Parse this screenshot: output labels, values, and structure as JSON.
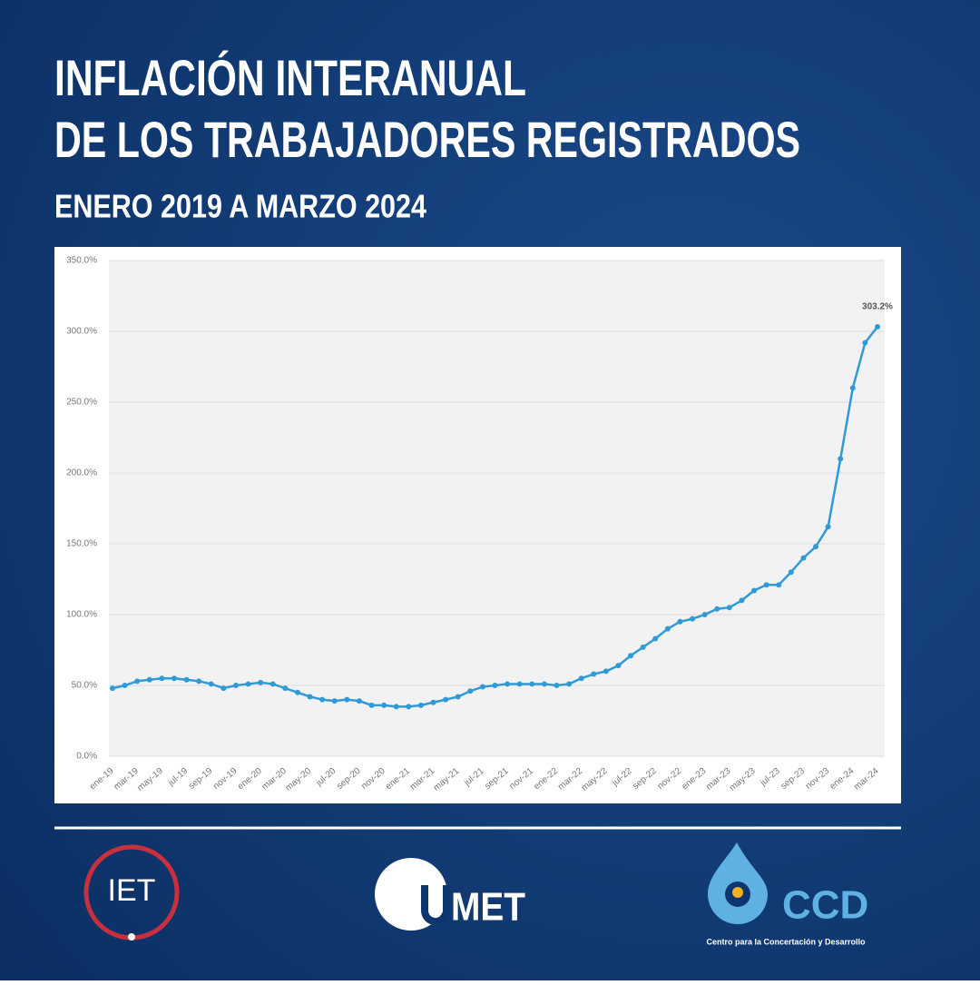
{
  "chart_data": {
    "type": "line",
    "title": [
      "INFLACIÓN INTERANUAL",
      "DE LOS TRABAJADORES REGISTRADOS"
    ],
    "subtitle": "ENERO 2019 A MARZO 2024",
    "categories": [
      "ene-19",
      null,
      "mar-19",
      null,
      "may-19",
      null,
      "jul-19",
      null,
      "sep-19",
      null,
      "nov-19",
      null,
      "ene-20",
      null,
      "mar-20",
      null,
      "may-20",
      null,
      "jul-20",
      null,
      "sep-20",
      null,
      "nov-20",
      null,
      "ene-21",
      null,
      "mar-21",
      null,
      "may-21",
      null,
      "jul-21",
      null,
      "sep-21",
      null,
      "nov-21",
      null,
      "ene-22",
      null,
      "mar-22",
      null,
      "may-22",
      null,
      "jul-22",
      null,
      "sep-22",
      null,
      "nov-22",
      null,
      "ene-23",
      null,
      "mar-23",
      null,
      "may-23",
      null,
      "jul-23",
      null,
      "sep-23",
      null,
      "nov-23",
      null,
      "ene-24",
      null,
      "mar-24"
    ],
    "values": [
      48,
      50,
      53,
      54,
      55,
      55,
      54,
      53,
      51,
      48,
      50,
      51,
      52,
      51,
      48,
      45,
      42,
      40,
      39,
      40,
      39,
      36,
      36,
      35,
      35,
      36,
      38,
      40,
      42,
      46,
      49,
      50,
      51,
      51,
      51,
      51,
      50,
      51,
      55,
      58,
      60,
      64,
      71,
      77,
      83,
      90,
      95,
      97,
      100,
      104,
      105,
      110,
      117,
      121,
      121,
      130,
      140,
      148,
      162,
      210,
      260,
      292,
      303.2
    ],
    "value_labels": [
      null,
      null,
      null,
      null,
      null,
      null,
      null,
      null,
      null,
      null,
      null,
      null,
      null,
      null,
      null,
      null,
      null,
      null,
      null,
      null,
      null,
      null,
      null,
      null,
      null,
      null,
      null,
      null,
      null,
      null,
      null,
      null,
      null,
      null,
      null,
      null,
      null,
      null,
      null,
      null,
      null,
      null,
      null,
      null,
      null,
      null,
      null,
      null,
      null,
      null,
      null,
      null,
      null,
      null,
      null,
      null,
      null,
      null,
      null,
      null,
      null,
      null,
      "303.2%"
    ],
    "color": "#2f9ad6",
    "ylim": [
      0,
      350
    ],
    "yticks": [
      {
        "value": 0,
        "label": "0.0%"
      },
      {
        "value": 50,
        "label": "50.0%"
      },
      {
        "value": 100,
        "label": "100.0%"
      },
      {
        "value": 150,
        "label": "150.0%"
      },
      {
        "value": 200,
        "label": "200.0%"
      },
      {
        "value": 250,
        "label": "250.0%"
      },
      {
        "value": 300,
        "label": "300.0%"
      },
      {
        "value": 350,
        "label": "350.0%"
      }
    ],
    "grid": true
  },
  "footer": {
    "logos": [
      "IET",
      "MET",
      "CCD",
      "Centro para la Concertación y Desarrollo"
    ]
  }
}
